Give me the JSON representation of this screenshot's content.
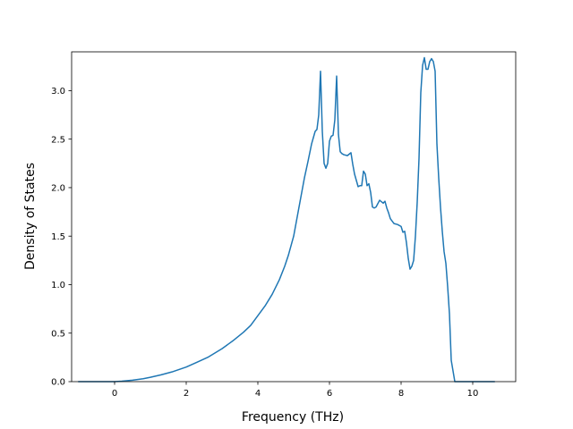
{
  "chart_data": {
    "type": "line",
    "title": "",
    "xlabel": "Frequency (THz)",
    "ylabel": "Density of States",
    "xlim": [
      -1.2,
      11.2
    ],
    "ylim": [
      0.0,
      3.4
    ],
    "xticks": [
      0,
      2,
      4,
      6,
      8,
      10
    ],
    "xtick_labels": [
      "0",
      "2",
      "4",
      "6",
      "8",
      "10"
    ],
    "yticks": [
      0.0,
      0.5,
      1.0,
      1.5,
      2.0,
      2.5,
      3.0
    ],
    "ytick_labels": [
      "0.0",
      "0.5",
      "1.0",
      "1.5",
      "2.0",
      "2.5",
      "3.0"
    ],
    "grid": false,
    "line_color": "#1f77b4",
    "series": [
      {
        "x": [
          -1.0,
          -0.5,
          0.0,
          0.2,
          0.5,
          0.8,
          1.0,
          1.3,
          1.6,
          2.0,
          2.3,
          2.6,
          3.0,
          3.3,
          3.6,
          3.8,
          4.0,
          4.2,
          4.4,
          4.6,
          4.75,
          4.85,
          5.0,
          5.1,
          5.2,
          5.3,
          5.4,
          5.5,
          5.6,
          5.65,
          5.7,
          5.75,
          5.8,
          5.85,
          5.9,
          5.95,
          6.0,
          6.05,
          6.1,
          6.15,
          6.2,
          6.25,
          6.3,
          6.35,
          6.4,
          6.5,
          6.6,
          6.65,
          6.7,
          6.8,
          6.85,
          6.9,
          6.95,
          7.0,
          7.05,
          7.1,
          7.15,
          7.2,
          7.25,
          7.3,
          7.4,
          7.5,
          7.55,
          7.6,
          7.65,
          7.7,
          7.8,
          7.9,
          8.0,
          8.05,
          8.1,
          8.15,
          8.2,
          8.25,
          8.3,
          8.35,
          8.4,
          8.45,
          8.5,
          8.55,
          8.6,
          8.65,
          8.7,
          8.75,
          8.8,
          8.85,
          8.9,
          8.95,
          9.0,
          9.05,
          9.1,
          9.15,
          9.2,
          9.25,
          9.3,
          9.35,
          9.4,
          9.5,
          9.55,
          9.6,
          9.65,
          9.7,
          10.0,
          10.6
        ],
        "y": [
          0.0,
          0.0,
          0.0,
          0.005,
          0.015,
          0.03,
          0.045,
          0.07,
          0.1,
          0.15,
          0.2,
          0.25,
          0.34,
          0.42,
          0.51,
          0.58,
          0.68,
          0.78,
          0.9,
          1.05,
          1.19,
          1.3,
          1.5,
          1.7,
          1.9,
          2.1,
          2.27,
          2.45,
          2.58,
          2.6,
          2.75,
          3.2,
          2.58,
          2.25,
          2.2,
          2.25,
          2.48,
          2.53,
          2.54,
          2.7,
          3.15,
          2.55,
          2.37,
          2.35,
          2.34,
          2.33,
          2.36,
          2.24,
          2.14,
          2.01,
          2.02,
          2.02,
          2.17,
          2.14,
          2.02,
          2.04,
          1.95,
          1.8,
          1.79,
          1.8,
          1.87,
          1.84,
          1.86,
          1.79,
          1.74,
          1.68,
          1.63,
          1.62,
          1.6,
          1.54,
          1.55,
          1.43,
          1.27,
          1.16,
          1.19,
          1.25,
          1.5,
          1.85,
          2.3,
          2.98,
          3.26,
          3.34,
          3.22,
          3.22,
          3.3,
          3.33,
          3.3,
          3.2,
          2.45,
          2.1,
          1.8,
          1.55,
          1.34,
          1.22,
          0.98,
          0.7,
          0.22,
          0.0,
          0.0,
          0.0,
          0.0,
          0.0,
          0.0,
          0.0
        ]
      }
    ]
  }
}
